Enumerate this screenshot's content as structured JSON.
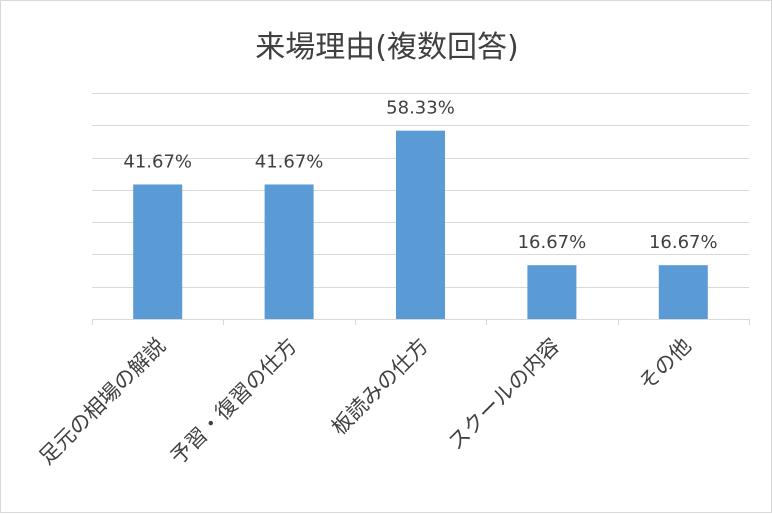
{
  "chart_data": {
    "type": "bar",
    "title": "来場理由(複数回答)",
    "xlabel": "",
    "ylabel": "",
    "categories": [
      "足元の相場の解説",
      "予習・復習の仕方",
      "板読みの仕方",
      "スクールの内容",
      "その他"
    ],
    "values": [
      41.67,
      41.67,
      58.33,
      16.67,
      16.67
    ],
    "data_labels": [
      "41.67%",
      "41.67%",
      "58.33%",
      "16.67%",
      "16.67%"
    ],
    "ylim": [
      0,
      70
    ],
    "grid": true,
    "bar_color": "#5b9bd5",
    "grid_color": "#d9d9d9",
    "text_color": "#404040"
  }
}
